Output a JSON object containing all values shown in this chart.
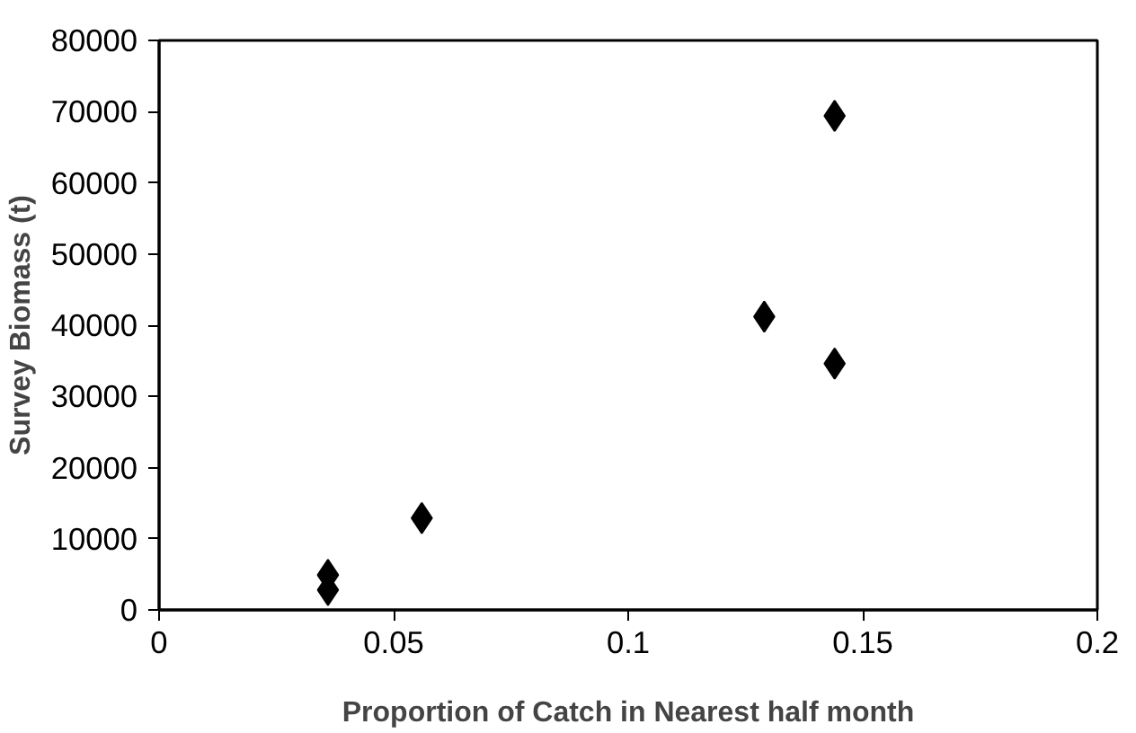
{
  "chart_data": {
    "type": "scatter",
    "xlabel": "Proportion of Catch in Nearest half month",
    "ylabel": "Survey Biomass (t)",
    "x": [
      0.144,
      0.129,
      0.144,
      0.056,
      0.036,
      0.036
    ],
    "values": [
      69400,
      41200,
      34600,
      12900,
      4900,
      2800
    ],
    "color": "#000000",
    "marker": "diamond",
    "grid": false,
    "legend": false,
    "xlim": [
      0,
      0.2
    ],
    "xticks": [
      0,
      0.05,
      0.1,
      0.15,
      0.2
    ],
    "ylim": [
      0,
      80000
    ],
    "yticks": [
      0,
      10000,
      20000,
      30000,
      40000,
      50000,
      60000,
      70000,
      80000
    ]
  }
}
